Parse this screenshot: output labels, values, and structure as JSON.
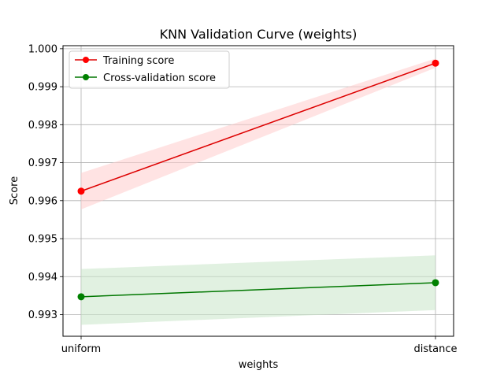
{
  "chart_data": {
    "type": "line",
    "title": "KNN Validation Curve (weights)",
    "xlabel": "weights",
    "ylabel": "Score",
    "categories": [
      "uniform",
      "distance"
    ],
    "ylim": [
      0.99243,
      1.00008
    ],
    "yticks": [
      0.993,
      0.994,
      0.995,
      0.996,
      0.997,
      0.998,
      0.999,
      1.0
    ],
    "ytick_labels": [
      "0.993",
      "0.994",
      "0.995",
      "0.996",
      "0.997",
      "0.998",
      "0.999",
      "1.000"
    ],
    "grid": true,
    "legend_position": "upper-left",
    "series": [
      {
        "name": "Training score",
        "color": "#e41a1c",
        "line_color": "#dd0000",
        "band_color": "#ffcccc",
        "values": [
          0.99625,
          0.99962
        ],
        "band_lower": [
          0.99577,
          0.9995
        ],
        "band_upper": [
          0.99673,
          0.99974
        ]
      },
      {
        "name": "Cross-validation score",
        "color": "#008000",
        "line_color": "#007700",
        "band_color": "#c8e6c8",
        "values": [
          0.99347,
          0.99384
        ],
        "band_lower": [
          0.99273,
          0.99312
        ],
        "band_upper": [
          0.9942,
          0.99456
        ]
      }
    ]
  }
}
